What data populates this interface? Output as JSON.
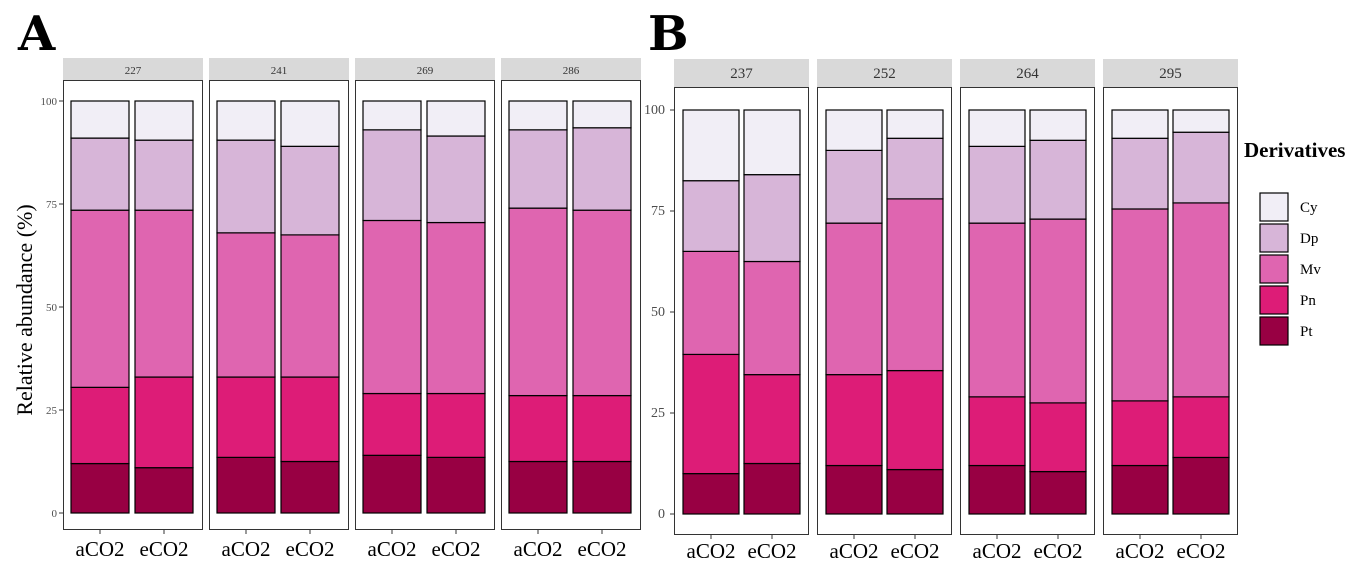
{
  "chart_data": [
    {
      "type": "bar",
      "stacked": true,
      "panel_label": "A",
      "ylabel": "Relative abundance (%)",
      "ylim": [
        0,
        100
      ],
      "yticks": [
        0,
        25,
        50,
        75,
        100
      ],
      "categories": [
        "aCO2",
        "eCO2"
      ],
      "legend_order": [
        "Cy",
        "Dp",
        "Mv",
        "Pn",
        "Pt"
      ],
      "facets": [
        {
          "label": "227",
          "bars": [
            {
              "category": "aCO2",
              "Pt": 12,
              "Pn": 18.5,
              "Mv": 43,
              "Dp": 17.5,
              "Cy": 9
            },
            {
              "category": "eCO2",
              "Pt": 11,
              "Pn": 22,
              "Mv": 40.5,
              "Dp": 17,
              "Cy": 9.5
            }
          ]
        },
        {
          "label": "241",
          "bars": [
            {
              "category": "aCO2",
              "Pt": 13.5,
              "Pn": 19.5,
              "Mv": 35,
              "Dp": 22.5,
              "Cy": 9.5
            },
            {
              "category": "eCO2",
              "Pt": 12.5,
              "Pn": 20.5,
              "Mv": 34.5,
              "Dp": 21.5,
              "Cy": 11
            }
          ]
        },
        {
          "label": "269",
          "bars": [
            {
              "category": "aCO2",
              "Pt": 14,
              "Pn": 15,
              "Mv": 42,
              "Dp": 22,
              "Cy": 7
            },
            {
              "category": "eCO2",
              "Pt": 13.5,
              "Pn": 15.5,
              "Mv": 41.5,
              "Dp": 21,
              "Cy": 8.5
            }
          ]
        },
        {
          "label": "286",
          "bars": [
            {
              "category": "aCO2",
              "Pt": 12.5,
              "Pn": 16,
              "Mv": 45.5,
              "Dp": 19,
              "Cy": 7
            },
            {
              "category": "eCO2",
              "Pt": 12.5,
              "Pn": 16,
              "Mv": 45,
              "Dp": 20,
              "Cy": 6.5
            }
          ]
        }
      ]
    },
    {
      "type": "bar",
      "stacked": true,
      "panel_label": "B",
      "ylim": [
        0,
        100
      ],
      "yticks": [
        0,
        25,
        50,
        75,
        100
      ],
      "categories": [
        "aCO2",
        "eCO2"
      ],
      "legend_title": "Derivatives",
      "legend_order": [
        "Cy",
        "Dp",
        "Mv",
        "Pn",
        "Pt"
      ],
      "legend_position": "right",
      "facets": [
        {
          "label": "237",
          "bars": [
            {
              "category": "aCO2",
              "Pt": 10,
              "Pn": 29.5,
              "Mv": 25.5,
              "Dp": 17.5,
              "Cy": 17.5
            },
            {
              "category": "eCO2",
              "Pt": 12.5,
              "Pn": 22,
              "Mv": 28,
              "Dp": 21.5,
              "Cy": 16
            }
          ]
        },
        {
          "label": "252",
          "bars": [
            {
              "category": "aCO2",
              "Pt": 12,
              "Pn": 22.5,
              "Mv": 37.5,
              "Dp": 18,
              "Cy": 10
            },
            {
              "category": "eCO2",
              "Pt": 11,
              "Pn": 24.5,
              "Mv": 42.5,
              "Dp": 15,
              "Cy": 7
            }
          ]
        },
        {
          "label": "264",
          "bars": [
            {
              "category": "aCO2",
              "Pt": 12,
              "Pn": 17,
              "Mv": 43,
              "Dp": 19,
              "Cy": 9
            },
            {
              "category": "eCO2",
              "Pt": 10.5,
              "Pn": 17,
              "Mv": 45.5,
              "Dp": 19.5,
              "Cy": 7.5
            }
          ]
        },
        {
          "label": "295",
          "bars": [
            {
              "category": "aCO2",
              "Pt": 12,
              "Pn": 16,
              "Mv": 47.5,
              "Dp": 17.5,
              "Cy": 7
            },
            {
              "category": "eCO2",
              "Pt": 14,
              "Pn": 15,
              "Mv": 48,
              "Dp": 17.5,
              "Cy": 5.5
            }
          ]
        }
      ]
    }
  ],
  "colors": {
    "Cy": "#f1eef6",
    "Dp": "#d7b5d8",
    "Mv": "#df65b0",
    "Pn": "#dd1c77",
    "Pt": "#980043"
  }
}
